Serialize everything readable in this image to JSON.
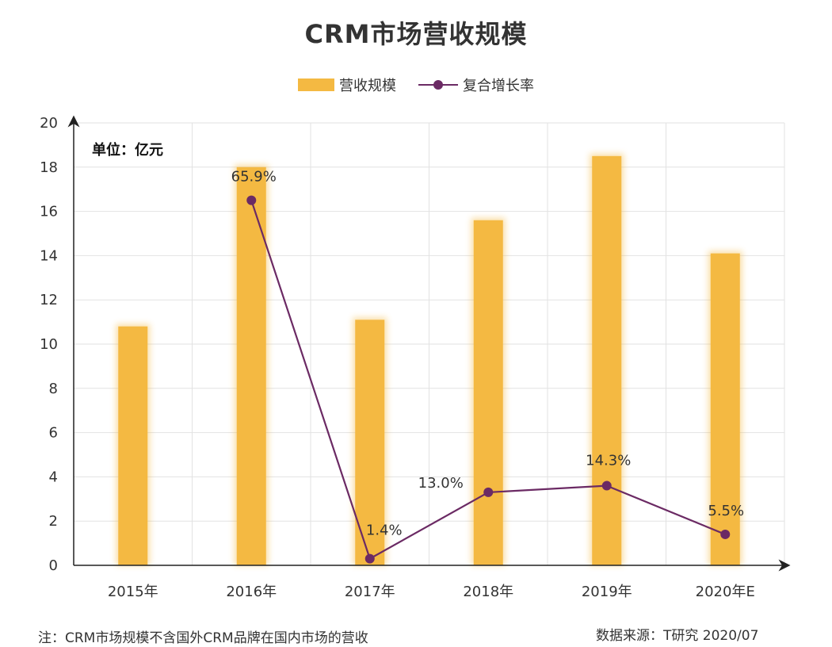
{
  "title": "CRM市场营收规模",
  "legend": {
    "bar_label": "营收规模",
    "line_label": "复合增长率"
  },
  "unit_label": "单位：亿元",
  "footnote": "注：CRM市场规模不含国外CRM品牌在国内市场的营收",
  "source": "数据来源：T研究 2020/07",
  "colors": {
    "bar": "#F4B942",
    "line": "#6B2A64",
    "axis": "#222222",
    "grid": "#E2E2E2"
  },
  "chart_data": {
    "type": "bar",
    "title": "CRM市场营收规模",
    "categories": [
      "2015年",
      "2016年",
      "2017年",
      "2018年",
      "2019年",
      "2020年E"
    ],
    "ylim": [
      0,
      20
    ],
    "yticks": [
      0,
      2,
      4,
      6,
      8,
      10,
      12,
      14,
      16,
      18,
      20
    ],
    "grid": true,
    "legend_position": "top-center",
    "unit": "单位：亿元",
    "series": [
      {
        "name": "营收规模",
        "type": "bar",
        "values": [
          10.8,
          18.0,
          11.1,
          15.6,
          18.5,
          14.1
        ]
      },
      {
        "name": "复合增长率",
        "type": "line",
        "categories": [
          "2016年",
          "2017年",
          "2018年",
          "2019年",
          "2020年E"
        ],
        "values_on_axis": [
          16.5,
          0.3,
          3.3,
          3.6,
          1.4
        ],
        "labels": [
          "65.9%",
          "1.4%",
          "13.0%",
          "14.3%",
          "5.5%"
        ]
      }
    ]
  }
}
